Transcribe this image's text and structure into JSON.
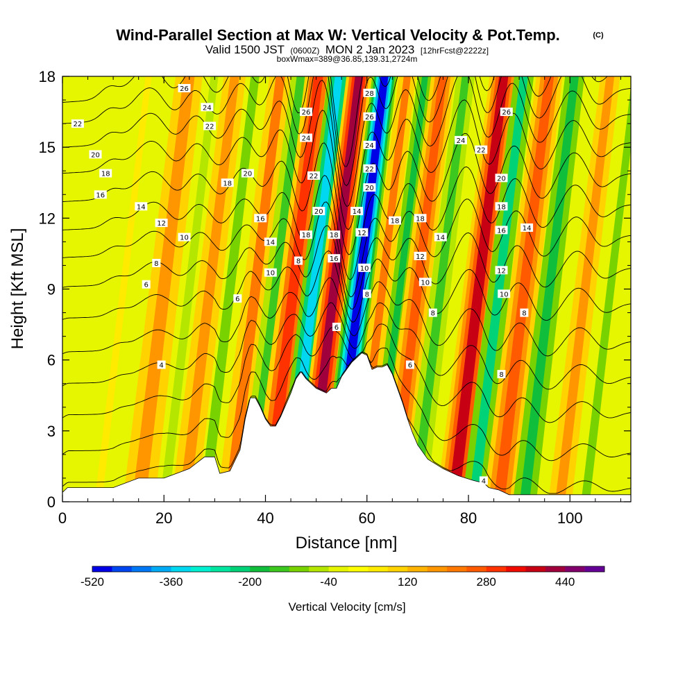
{
  "title": {
    "main": "Wind-Parallel Section at Max W: Vertical Velocity & Pot.Temp.",
    "copyright": "(C)",
    "valid_prefix": "Valid 1500 JST",
    "valid_utc": "(0600Z)",
    "valid_date": "MON 2 Jan 2023",
    "forecast": "[12hrFcst@2222z]",
    "box_info": "boxWmax=389@36.85,139.31,2724m"
  },
  "chart_data": {
    "type": "heatmap",
    "xlabel": "Distance [nm]",
    "ylabel": "Height [Kft MSL]",
    "xlim": [
      0,
      112
    ],
    "ylim": [
      0,
      18
    ],
    "x_ticks": [
      0,
      20,
      40,
      60,
      80,
      100
    ],
    "y_ticks": [
      0,
      3,
      6,
      9,
      12,
      15,
      18
    ],
    "grid": false,
    "colorbar": {
      "label": "Vertical Velocity [cm/s]",
      "min": -520,
      "max": 520,
      "step": 40,
      "tick_values": [
        -520,
        -360,
        -200,
        -40,
        120,
        280,
        440
      ],
      "colors": [
        "#0000e6",
        "#0046f0",
        "#0078f5",
        "#00aaf5",
        "#00d7f0",
        "#00f0d2",
        "#00e6a0",
        "#00d278",
        "#10be3c",
        "#3cc81e",
        "#78d200",
        "#b4e600",
        "#e6f500",
        "#ffff00",
        "#ffeb00",
        "#ffd200",
        "#ffb400",
        "#ff9600",
        "#ff7800",
        "#ff5a00",
        "#ff3200",
        "#f00a00",
        "#c80014",
        "#a0003c",
        "#82006e",
        "#640096"
      ]
    },
    "velocity_bands": [
      {
        "x": 12,
        "w": 1.2,
        "value": 60
      },
      {
        "x": 20,
        "w": 2.2,
        "value": 170
      },
      {
        "x": 25,
        "w": 1.5,
        "value": -70
      },
      {
        "x": 29,
        "w": 1.8,
        "value": 170
      },
      {
        "x": 33,
        "w": 1.7,
        "value": -90
      },
      {
        "x": 38,
        "w": 1.8,
        "value": 200
      },
      {
        "x": 42,
        "w": 1.6,
        "value": -150
      },
      {
        "x": 45.5,
        "w": 1.8,
        "value": 300
      },
      {
        "x": 49.5,
        "w": 1.5,
        "value": -330
      },
      {
        "x": 53.5,
        "w": 1.6,
        "value": 400
      },
      {
        "x": 58.5,
        "w": 1.5,
        "value": -500
      },
      {
        "x": 63,
        "w": 1.4,
        "value": 230
      },
      {
        "x": 66.5,
        "w": 1.2,
        "value": -170
      },
      {
        "x": 70,
        "w": 1.6,
        "value": 260
      },
      {
        "x": 74.5,
        "w": 1.5,
        "value": -160
      },
      {
        "x": 82,
        "w": 1.8,
        "value": 360
      },
      {
        "x": 86,
        "w": 1.6,
        "value": -240
      },
      {
        "x": 91,
        "w": 1.8,
        "value": 260
      },
      {
        "x": 96,
        "w": 1.6,
        "value": -170
      },
      {
        "x": 103,
        "w": 1.6,
        "value": 160
      },
      {
        "x": 108,
        "w": 1.4,
        "value": -90
      }
    ],
    "terrain": {
      "x": [
        0,
        1,
        10,
        15,
        20,
        25,
        28,
        30,
        31,
        33,
        35,
        36,
        37,
        38,
        39,
        40,
        41,
        42,
        43,
        44,
        45,
        46,
        47,
        48,
        49,
        50,
        51,
        52,
        53,
        54,
        55,
        56,
        57,
        58,
        59,
        60,
        61,
        62,
        63,
        64,
        65,
        66,
        67,
        68,
        69,
        70,
        72,
        75,
        78,
        81,
        83,
        84,
        86,
        87,
        88,
        90,
        95,
        100,
        105,
        109,
        112
      ],
      "kft": [
        0.4,
        0.6,
        0.6,
        1.0,
        1.0,
        1.4,
        1.9,
        1.9,
        1.2,
        1.3,
        2.2,
        3.5,
        4.4,
        4.4,
        4.0,
        3.5,
        3.2,
        3.2,
        3.6,
        4.1,
        4.6,
        5.2,
        5.5,
        5.2,
        5.0,
        4.8,
        4.7,
        4.6,
        4.8,
        4.8,
        5.3,
        5.6,
        5.9,
        6.1,
        6.3,
        6.2,
        5.6,
        5.7,
        5.7,
        5.8,
        5.4,
        4.8,
        4.2,
        3.5,
        2.9,
        2.4,
        1.8,
        1.4,
        1.1,
        0.9,
        0.8,
        0.6,
        0.5,
        0.4,
        0.3,
        0.3,
        0.3,
        0.3,
        0.3,
        0.3,
        0.3
      ]
    },
    "theta_contours": {
      "start": 2,
      "step": 2,
      "count": 14,
      "base_kft": [
        0.3,
        1.7,
        3.3,
        4.7,
        6.1,
        7.6,
        9.0,
        10.3,
        11.5,
        12.7,
        13.9,
        15.0,
        16.0,
        16.9
      ]
    },
    "contour_labels": [
      {
        "x": 3,
        "y": 16.0,
        "text": "22"
      },
      {
        "x": 6.5,
        "y": 14.7,
        "text": "20"
      },
      {
        "x": 8.5,
        "y": 13.9,
        "text": "18"
      },
      {
        "x": 7.5,
        "y": 13.0,
        "text": "16"
      },
      {
        "x": 15.5,
        "y": 12.5,
        "text": "14"
      },
      {
        "x": 19.5,
        "y": 11.8,
        "text": "12"
      },
      {
        "x": 24,
        "y": 11.2,
        "text": "10"
      },
      {
        "x": 18.5,
        "y": 10.1,
        "text": "8"
      },
      {
        "x": 16.5,
        "y": 9.2,
        "text": "6"
      },
      {
        "x": 19.5,
        "y": 5.8,
        "text": "4"
      },
      {
        "x": 24,
        "y": 17.5,
        "text": "26"
      },
      {
        "x": 28.5,
        "y": 16.7,
        "text": "24"
      },
      {
        "x": 29,
        "y": 15.9,
        "text": "22"
      },
      {
        "x": 36.5,
        "y": 13.9,
        "text": "20"
      },
      {
        "x": 32.5,
        "y": 13.5,
        "text": "18"
      },
      {
        "x": 39,
        "y": 12.0,
        "text": "16"
      },
      {
        "x": 41,
        "y": 11.0,
        "text": "14"
      },
      {
        "x": 41,
        "y": 9.7,
        "text": "10"
      },
      {
        "x": 34.5,
        "y": 8.6,
        "text": "6"
      },
      {
        "x": 46.5,
        "y": 10.2,
        "text": "8"
      },
      {
        "x": 48,
        "y": 16.5,
        "text": "26"
      },
      {
        "x": 48,
        "y": 15.4,
        "text": "24"
      },
      {
        "x": 49.5,
        "y": 13.8,
        "text": "22"
      },
      {
        "x": 50.5,
        "y": 12.3,
        "text": "20"
      },
      {
        "x": 48,
        "y": 11.3,
        "text": "18"
      },
      {
        "x": 53.5,
        "y": 11.3,
        "text": "18"
      },
      {
        "x": 53.5,
        "y": 10.3,
        "text": "16"
      },
      {
        "x": 54,
        "y": 7.4,
        "text": "6"
      },
      {
        "x": 60.5,
        "y": 17.3,
        "text": "28"
      },
      {
        "x": 60.5,
        "y": 16.3,
        "text": "26"
      },
      {
        "x": 60.5,
        "y": 15.1,
        "text": "24"
      },
      {
        "x": 60.5,
        "y": 14.1,
        "text": "22"
      },
      {
        "x": 60.5,
        "y": 13.3,
        "text": "20"
      },
      {
        "x": 58,
        "y": 12.3,
        "text": "14"
      },
      {
        "x": 59,
        "y": 11.4,
        "text": "12"
      },
      {
        "x": 59.5,
        "y": 9.9,
        "text": "10"
      },
      {
        "x": 60,
        "y": 8.8,
        "text": "8"
      },
      {
        "x": 65.5,
        "y": 11.9,
        "text": "18"
      },
      {
        "x": 70.5,
        "y": 12.0,
        "text": "18"
      },
      {
        "x": 74.5,
        "y": 11.2,
        "text": "14"
      },
      {
        "x": 70.5,
        "y": 10.4,
        "text": "12"
      },
      {
        "x": 71.5,
        "y": 9.3,
        "text": "10"
      },
      {
        "x": 73,
        "y": 8.0,
        "text": "8"
      },
      {
        "x": 68.5,
        "y": 5.8,
        "text": "6"
      },
      {
        "x": 78.5,
        "y": 15.3,
        "text": "24"
      },
      {
        "x": 82.5,
        "y": 14.9,
        "text": "22"
      },
      {
        "x": 87.5,
        "y": 16.5,
        "text": "26"
      },
      {
        "x": 86.5,
        "y": 13.7,
        "text": "20"
      },
      {
        "x": 86.5,
        "y": 12.5,
        "text": "18"
      },
      {
        "x": 86.5,
        "y": 11.5,
        "text": "16"
      },
      {
        "x": 91.5,
        "y": 11.6,
        "text": "14"
      },
      {
        "x": 86.5,
        "y": 9.8,
        "text": "12"
      },
      {
        "x": 87,
        "y": 8.8,
        "text": "10"
      },
      {
        "x": 91,
        "y": 8.0,
        "text": "8"
      },
      {
        "x": 86.5,
        "y": 5.4,
        "text": "8"
      },
      {
        "x": 83,
        "y": 0.9,
        "text": "4"
      }
    ]
  }
}
